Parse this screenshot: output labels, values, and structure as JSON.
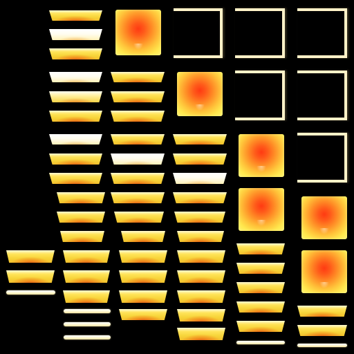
{
  "sheet": {
    "description_role": "sprite atlas",
    "background_color": "#000000"
  },
  "palette": {
    "glow_core": "#ff3a12",
    "glow_mid": "#ff8a25",
    "glow_edge": "#ffe94f",
    "slab_top": "#fffbd6",
    "slab_body": "#ffe45a",
    "strip_color": "#fff9d8",
    "frame_color": "#fff2c8"
  },
  "sprite_kinds": [
    "slab",
    "slab-white",
    "slab-pale",
    "strip",
    "orb",
    "frame"
  ]
}
